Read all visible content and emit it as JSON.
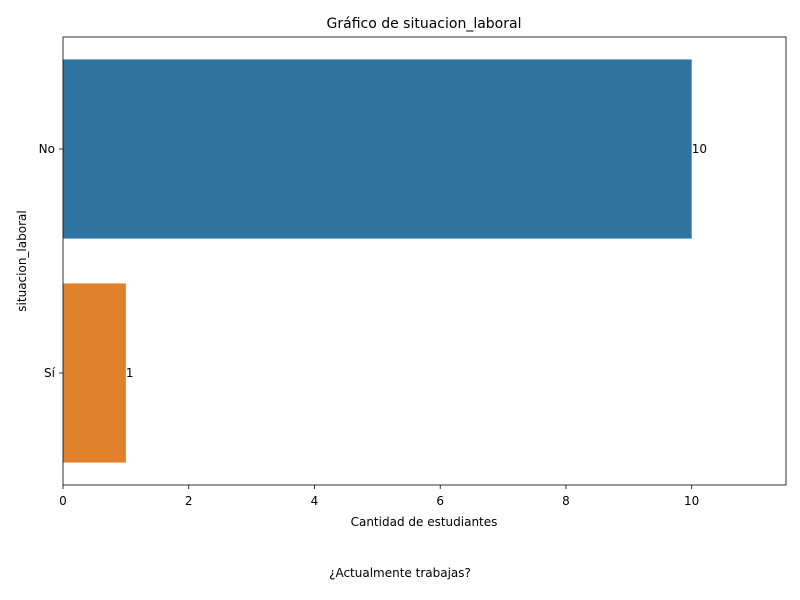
{
  "chart_data": {
    "type": "bar",
    "orientation": "horizontal",
    "title": "Gráfico de situacion_laboral",
    "xlabel": "Cantidad de estudiantes",
    "ylabel": "situacion_laboral",
    "categories": [
      "No",
      "Sí"
    ],
    "values": [
      10,
      1
    ],
    "value_labels": [
      "10",
      "1"
    ],
    "colors": [
      "#3274a1",
      "#e1812c"
    ],
    "xlim": [
      0,
      11.5
    ],
    "xticks": [
      0,
      2,
      4,
      6,
      8,
      10
    ],
    "xtick_labels": [
      "0",
      "2",
      "4",
      "6",
      "8",
      "10"
    ],
    "grid": false
  },
  "caption": "¿Actualmente trabajas?"
}
